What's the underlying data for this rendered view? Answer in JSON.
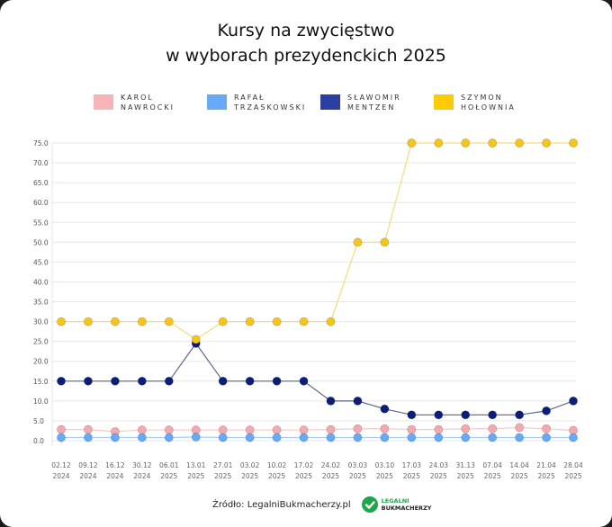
{
  "title_line1": "Kursy na zwycięstwo",
  "title_line2": "w wyborach prezydenckich 2025",
  "footer": {
    "source": "Źródło: LegalniBukmacherzy.pl",
    "logo_line1": "LEGALNI",
    "logo_line2": "BUKMACHERZY"
  },
  "chart_data": {
    "type": "line",
    "title": "Kursy na zwycięstwo w wyborach prezydenckich 2025",
    "legend_placement": "top",
    "grid": true,
    "ylim": [
      0,
      75
    ],
    "yticks": [
      "0.0",
      "5.0",
      "10.0",
      "15.0",
      "20.0",
      "25.0",
      "30.0",
      "35.0",
      "40.0",
      "45.0",
      "50.0",
      "55.0",
      "60.0",
      "65.0",
      "70.0",
      "75.0"
    ],
    "categories": [
      [
        "02.12",
        "2024"
      ],
      [
        "09.12",
        "2024"
      ],
      [
        "16.12",
        "2024"
      ],
      [
        "30.12",
        "2024"
      ],
      [
        "06.01",
        "2025"
      ],
      [
        "13.01",
        "2025"
      ],
      [
        "27.01",
        "2025"
      ],
      [
        "03.02",
        "2025"
      ],
      [
        "10.02",
        "2025"
      ],
      [
        "17.02",
        "2025"
      ],
      [
        "24.02",
        "2025"
      ],
      [
        "03.03",
        "2025"
      ],
      [
        "03.10",
        "2025"
      ],
      [
        "17.03",
        "2025"
      ],
      [
        "24.03",
        "2025"
      ],
      [
        "31.13",
        "2025"
      ],
      [
        "07.04",
        "2025"
      ],
      [
        "14.04",
        "2025"
      ],
      [
        "21.04",
        "2025"
      ],
      [
        "28.04",
        "2025"
      ]
    ],
    "series": [
      {
        "name": "KAROL NAWROCKI",
        "color": "#f7a8ae",
        "line": "#f5c9cc",
        "values": [
          2.8,
          2.8,
          2.3,
          2.7,
          2.7,
          2.7,
          2.7,
          2.7,
          2.7,
          2.7,
          2.8,
          3.0,
          3.0,
          2.8,
          2.8,
          3.0,
          3.0,
          3.3,
          3.0,
          2.6
        ]
      },
      {
        "name": "RAFAŁ TRZASKOWSKI",
        "color": "#66aaf5",
        "line": "#a9cdf7",
        "values": [
          0.8,
          0.8,
          0.8,
          0.8,
          0.8,
          0.9,
          0.8,
          0.8,
          0.8,
          0.8,
          0.8,
          0.8,
          0.8,
          0.8,
          0.8,
          0.8,
          0.8,
          0.8,
          0.8,
          0.8
        ]
      },
      {
        "name": "SŁAWOMIR MENTZEN",
        "color": "#0b1e7a",
        "line": "#5c6691",
        "values": [
          15,
          15,
          15,
          15,
          15,
          24.5,
          15,
          15,
          15,
          15,
          10,
          10,
          8,
          6.5,
          6.5,
          6.5,
          6.5,
          6.5,
          7.5,
          10
        ]
      },
      {
        "name": "SZYMON HOŁOWNIA",
        "color": "#f5c518",
        "line": "#f3dc7a",
        "values": [
          30,
          30,
          30,
          30,
          30,
          25.5,
          30,
          30,
          30,
          30,
          30,
          50,
          50,
          75,
          75,
          75,
          75,
          75,
          75,
          75
        ]
      }
    ]
  },
  "legend": [
    {
      "label": "KAROL\nNAWROCKI",
      "color": "#f7b3b8"
    },
    {
      "label": "RAFAŁ\nTRZASKOWSKI",
      "color": "#66aaf8"
    },
    {
      "label": "SŁAWOMIR\nMENTZEN",
      "color": "#2b3fa0"
    },
    {
      "label": "SZYMON\nHOŁOWNIA",
      "color": "#fccb05"
    }
  ]
}
